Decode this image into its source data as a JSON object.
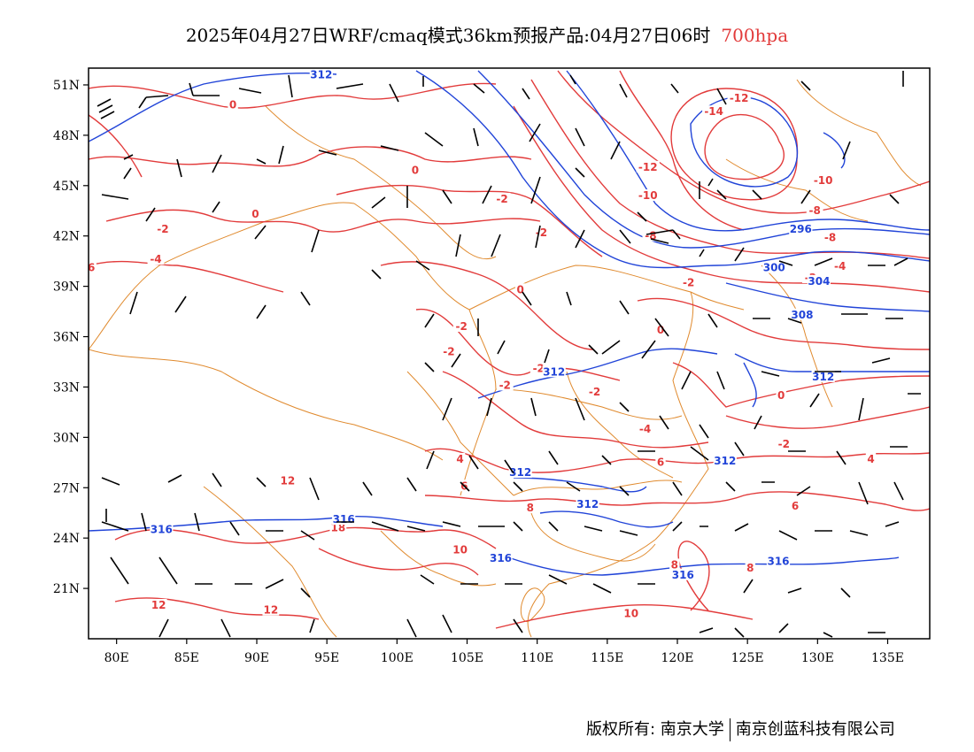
{
  "title": {
    "main": "2025年04月27日WRF/cmaq模式36km预报产品:04月27日06时",
    "level": "700hpa"
  },
  "colors": {
    "temperature": "#e23b3b",
    "height": "#2144d8",
    "border": "#e08a2e",
    "wind": "#000000"
  },
  "map": {
    "lon_range": [
      78,
      138
    ],
    "lat_range": [
      18,
      52
    ],
    "x_ticks": [
      "80E",
      "85E",
      "90E",
      "95E",
      "100E",
      "105E",
      "110E",
      "115E",
      "120E",
      "125E",
      "130E",
      "135E"
    ],
    "x_tick_values": [
      80,
      85,
      90,
      95,
      100,
      105,
      110,
      115,
      120,
      125,
      130,
      135
    ],
    "y_ticks": [
      "51N",
      "48N",
      "45N",
      "42N",
      "39N",
      "36N",
      "33N",
      "30N",
      "27N",
      "24N",
      "21N"
    ],
    "y_tick_values": [
      51,
      48,
      45,
      42,
      39,
      36,
      33,
      30,
      27,
      24,
      21
    ]
  },
  "temperature_labels": [
    {
      "text": "0",
      "lon": 88.3,
      "lat": 49.7
    },
    {
      "text": "0",
      "lon": 101.3,
      "lat": 45.8
    },
    {
      "text": "0",
      "lon": 89.9,
      "lat": 43.2
    },
    {
      "text": "-2",
      "lon": 107.5,
      "lat": 44.1
    },
    {
      "text": "-2",
      "lon": 110.3,
      "lat": 42.1
    },
    {
      "text": "-2",
      "lon": 83.3,
      "lat": 42.3
    },
    {
      "text": "-4",
      "lon": 82.8,
      "lat": 40.5
    },
    {
      "text": "6",
      "lon": 78.2,
      "lat": 40.0
    },
    {
      "text": "0",
      "lon": 108.8,
      "lat": 38.7
    },
    {
      "text": "-2",
      "lon": 104.6,
      "lat": 36.5
    },
    {
      "text": "-2",
      "lon": 103.7,
      "lat": 35.0
    },
    {
      "text": "-2",
      "lon": 107.7,
      "lat": 33.0
    },
    {
      "text": "-2",
      "lon": 110.1,
      "lat": 34.0
    },
    {
      "text": "0",
      "lon": 118.8,
      "lat": 36.3
    },
    {
      "text": "-2",
      "lon": 114.1,
      "lat": 32.6
    },
    {
      "text": "-4",
      "lon": 117.7,
      "lat": 30.4
    },
    {
      "text": "-14",
      "lon": 122.6,
      "lat": 49.3
    },
    {
      "text": "-12",
      "lon": 124.4,
      "lat": 50.1
    },
    {
      "text": "-12",
      "lon": 117.9,
      "lat": 46.0
    },
    {
      "text": "-10",
      "lon": 117.9,
      "lat": 44.3
    },
    {
      "text": "-10",
      "lon": 130.4,
      "lat": 45.2
    },
    {
      "text": "-8",
      "lon": 129.8,
      "lat": 43.4
    },
    {
      "text": "-8",
      "lon": 130.9,
      "lat": 41.8
    },
    {
      "text": "-8",
      "lon": 118.1,
      "lat": 41.9
    },
    {
      "text": "-4",
      "lon": 131.6,
      "lat": 40.1
    },
    {
      "text": "-2",
      "lon": 129.5,
      "lat": 39.4
    },
    {
      "text": "-2",
      "lon": 120.8,
      "lat": 39.1
    },
    {
      "text": "0",
      "lon": 127.4,
      "lat": 32.4
    },
    {
      "text": "-2",
      "lon": 127.6,
      "lat": 29.5
    },
    {
      "text": "4",
      "lon": 133.8,
      "lat": 28.6
    },
    {
      "text": "6",
      "lon": 118.8,
      "lat": 28.4
    },
    {
      "text": "6",
      "lon": 128.4,
      "lat": 25.8
    },
    {
      "text": "4",
      "lon": 104.5,
      "lat": 28.6
    },
    {
      "text": "6",
      "lon": 104.8,
      "lat": 27.0
    },
    {
      "text": "8",
      "lon": 109.5,
      "lat": 25.7
    },
    {
      "text": "12",
      "lon": 92.2,
      "lat": 27.3
    },
    {
      "text": "18",
      "lon": 95.8,
      "lat": 24.5
    },
    {
      "text": "10",
      "lon": 104.5,
      "lat": 23.2
    },
    {
      "text": "8",
      "lon": 125.2,
      "lat": 22.1
    },
    {
      "text": "8",
      "lon": 119.8,
      "lat": 22.3
    },
    {
      "text": "12",
      "lon": 83.0,
      "lat": 19.9
    },
    {
      "text": "12",
      "lon": 91.0,
      "lat": 19.6
    },
    {
      "text": "10",
      "lon": 116.7,
      "lat": 19.4
    }
  ],
  "height_labels": [
    {
      "text": "312",
      "lon": 94.6,
      "lat": 51.5
    },
    {
      "text": "296",
      "lon": 128.8,
      "lat": 42.3
    },
    {
      "text": "300",
      "lon": 126.9,
      "lat": 40.0
    },
    {
      "text": "304",
      "lon": 130.1,
      "lat": 39.2
    },
    {
      "text": "308",
      "lon": 128.9,
      "lat": 37.2
    },
    {
      "text": "312",
      "lon": 111.2,
      "lat": 33.8
    },
    {
      "text": "312",
      "lon": 130.4,
      "lat": 33.5
    },
    {
      "text": "312",
      "lon": 123.4,
      "lat": 28.5
    },
    {
      "text": "312",
      "lon": 108.8,
      "lat": 27.8
    },
    {
      "text": "312",
      "lon": 113.6,
      "lat": 25.9
    },
    {
      "text": "316",
      "lon": 83.2,
      "lat": 24.4
    },
    {
      "text": "316",
      "lon": 96.2,
      "lat": 25.0
    },
    {
      "text": "316",
      "lon": 107.4,
      "lat": 22.7
    },
    {
      "text": "316",
      "lon": 120.4,
      "lat": 21.7
    },
    {
      "text": "316",
      "lon": 127.2,
      "lat": 22.5
    }
  ],
  "copyright": {
    "left": "版权所有: 南京大学",
    "right": "南京创蓝科技有限公司"
  }
}
